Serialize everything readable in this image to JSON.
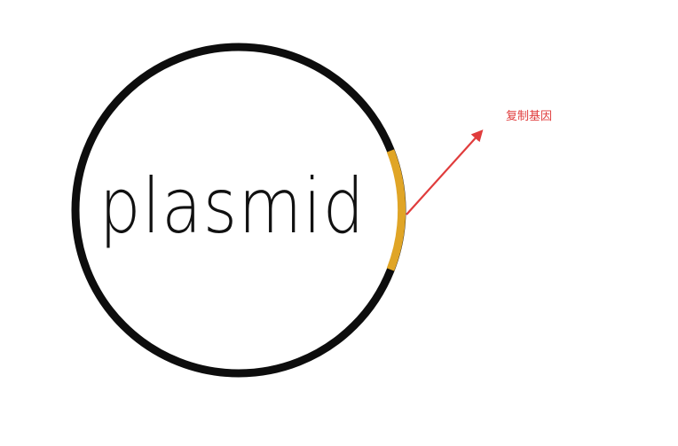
{
  "diagram": {
    "plasmid_label": "plasmid",
    "gene_label": "复制基因",
    "colors": {
      "ring": "#0d0d0d",
      "gene_segment": "#e0a526",
      "arrow": "#e03c3c",
      "label": "#e03c3c",
      "background": "#ffffff"
    }
  }
}
